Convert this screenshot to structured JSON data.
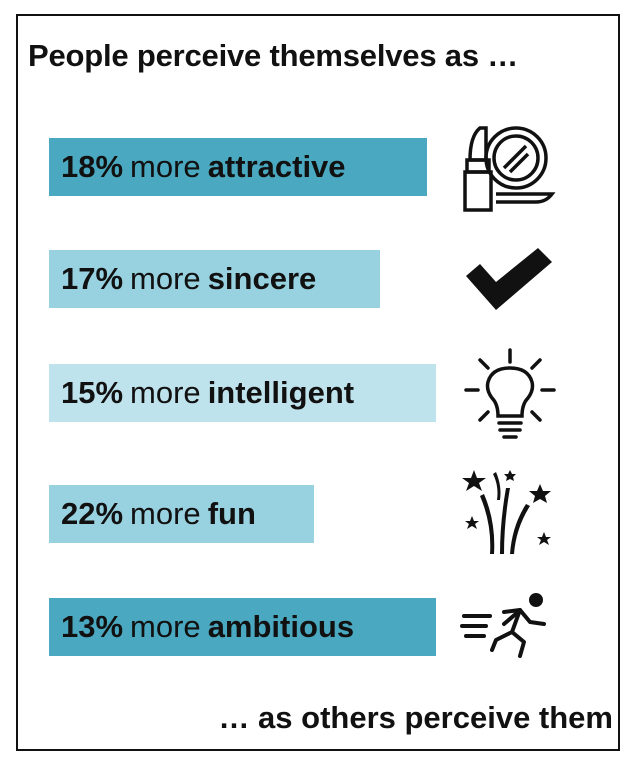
{
  "title": "People perceive themselves as …",
  "footer": "… as others perceive them",
  "chart_data": {
    "type": "bar",
    "title": "People perceive themselves as …",
    "caption": "… as others perceive them",
    "unit": "%",
    "categories": [
      "attractive",
      "sincere",
      "intelligent",
      "fun",
      "ambitious"
    ],
    "values": [
      18,
      17,
      15,
      22,
      13
    ]
  },
  "rows": [
    {
      "pct": "18%",
      "word": "more",
      "trait": "attractive",
      "color": "#4aa9c0",
      "icon": "lipstick-mirror-icon"
    },
    {
      "pct": "17%",
      "word": "more",
      "trait": "sincere",
      "color": "#98d1e0",
      "icon": "checkmark-icon"
    },
    {
      "pct": "15%",
      "word": "more",
      "trait": "intelligent",
      "color": "#bfe3ec",
      "icon": "lightbulb-icon"
    },
    {
      "pct": "22%",
      "word": "more",
      "trait": "fun",
      "color": "#98d1e0",
      "icon": "fireworks-icon"
    },
    {
      "pct": "13%",
      "word": "more",
      "trait": "ambitious",
      "color": "#4aa9c0",
      "icon": "running-person-icon"
    }
  ]
}
